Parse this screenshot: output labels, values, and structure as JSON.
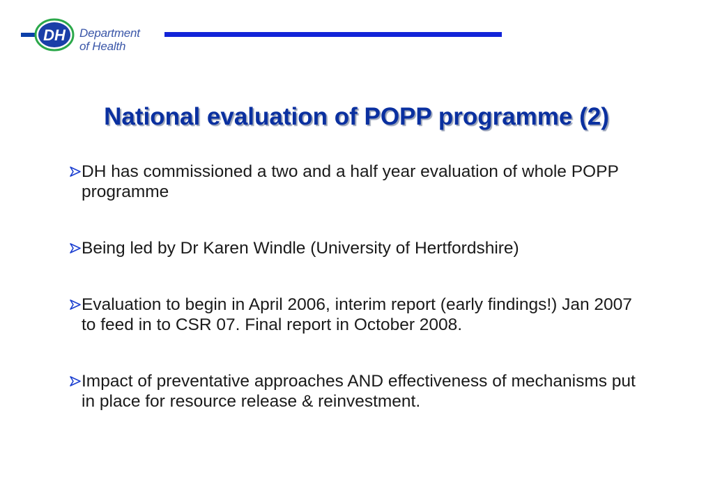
{
  "logo": {
    "badge_text": "DH",
    "line1": "Department",
    "line2": "of Health"
  },
  "title": "National evaluation of POPP programme (2)",
  "bullets": [
    {
      "text": "DH has commissioned a two and a half year evaluation of whole POPP programme"
    },
    {
      "text": "Being led by Dr Karen Windle (University of Hertfordshire)"
    },
    {
      "text": "Evaluation to begin in April 2006, interim report (early findings!) Jan 2007 to feed in to CSR 07. Final report in October 2008."
    },
    {
      "text": "Impact of preventative approaches AND effectiveness of mechanisms put in place for resource release & reinvestment."
    }
  ],
  "colors": {
    "title": "#0a30a0",
    "accent_rule": "#1224d8",
    "bullet_arrow": "#1a3ed0",
    "logo_text": "#3a56a8"
  }
}
